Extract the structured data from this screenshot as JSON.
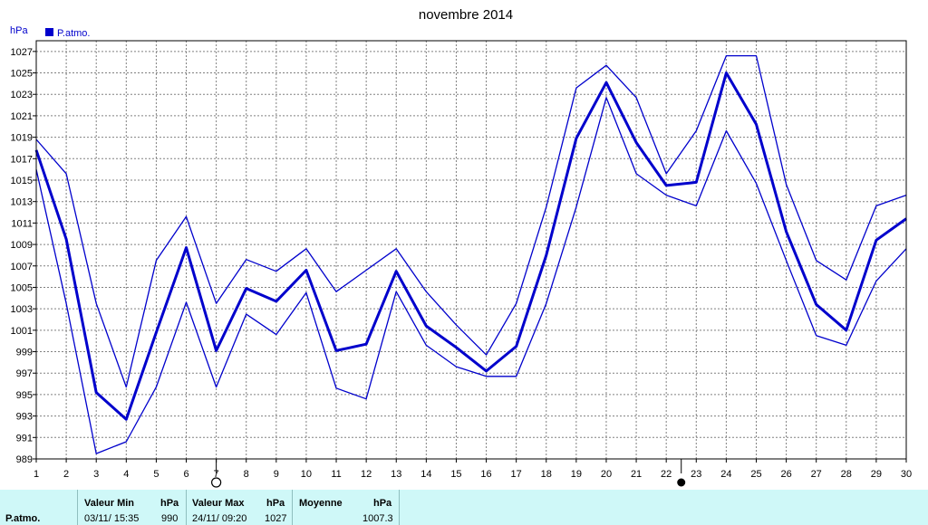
{
  "chart_data": {
    "type": "line",
    "title": "novembre 2014",
    "ylabel": "hPa",
    "legend": [
      "P.atmo."
    ],
    "legend_placement": "top-left",
    "grid": true,
    "x": [
      1,
      2,
      3,
      4,
      5,
      6,
      7,
      8,
      9,
      10,
      11,
      12,
      13,
      14,
      15,
      16,
      17,
      18,
      19,
      20,
      21,
      22,
      23,
      24,
      25,
      26,
      27,
      28,
      29,
      30
    ],
    "xlim": [
      1,
      30
    ],
    "ylim": [
      989,
      1028
    ],
    "yticks": [
      989,
      991,
      993,
      995,
      997,
      999,
      1001,
      1003,
      1005,
      1007,
      1009,
      1011,
      1013,
      1015,
      1017,
      1019,
      1021,
      1023,
      1025,
      1027
    ],
    "series": [
      {
        "role": "max",
        "width": 1.3,
        "values": [
          1018.8,
          1015.6,
          1003.5,
          995.7,
          1007.5,
          1011.6,
          1003.5,
          1007.6,
          1006.5,
          1008.6,
          1004.6,
          1006.6,
          1008.6,
          1004.6,
          1001.5,
          998.7,
          1003.5,
          1012.5,
          1023.6,
          1025.7,
          1022.7,
          1015.6,
          1019.6,
          1026.6,
          1026.6,
          1014.6,
          1007.5,
          1005.7,
          1012.6,
          1013.6
        ]
      },
      {
        "name": "P.atmo.",
        "role": "mean",
        "width": 3,
        "values": [
          1017.8,
          1009.5,
          995.2,
          992.7,
          1000.8,
          1008.7,
          999.1,
          1004.9,
          1003.7,
          1006.6,
          999.1,
          999.7,
          1006.5,
          1001.4,
          999.4,
          997.2,
          999.5,
          1008.0,
          1018.9,
          1024.1,
          1018.5,
          1014.5,
          1014.8,
          1025.0,
          1020.2,
          1010.2,
          1003.4,
          1001.0,
          1009.4,
          1011.4
        ]
      },
      {
        "role": "min",
        "width": 1.3,
        "values": [
          1016.0,
          1003.5,
          989.5,
          990.6,
          995.7,
          1003.6,
          995.7,
          1002.5,
          1000.6,
          1004.5,
          995.6,
          994.6,
          1004.6,
          999.6,
          997.6,
          996.7,
          996.7,
          1003.5,
          1012.5,
          1022.7,
          1015.6,
          1013.6,
          1012.6,
          1019.6,
          1014.7,
          1007.5,
          1000.5,
          999.6,
          1005.6,
          1008.6
        ]
      }
    ],
    "moon_phases": [
      {
        "day": 7,
        "phase": "full"
      },
      {
        "day": 22.5,
        "phase": "new"
      }
    ]
  },
  "colors": {
    "line": "#0000cc",
    "grid": "#808080",
    "footer_bg": "#cff8f8"
  },
  "footer": {
    "row_label": "P.atmo.",
    "min_label": "Valeur Min",
    "min_unit": "hPa",
    "min_date": "03/11/ 15:35",
    "min_value": "990",
    "max_label": "Valeur Max",
    "max_unit": "hPa",
    "max_date": "24/11/ 09:20",
    "max_value": "1027",
    "avg_label": "Moyenne",
    "avg_unit": "hPa",
    "avg_value": "1007.3"
  }
}
